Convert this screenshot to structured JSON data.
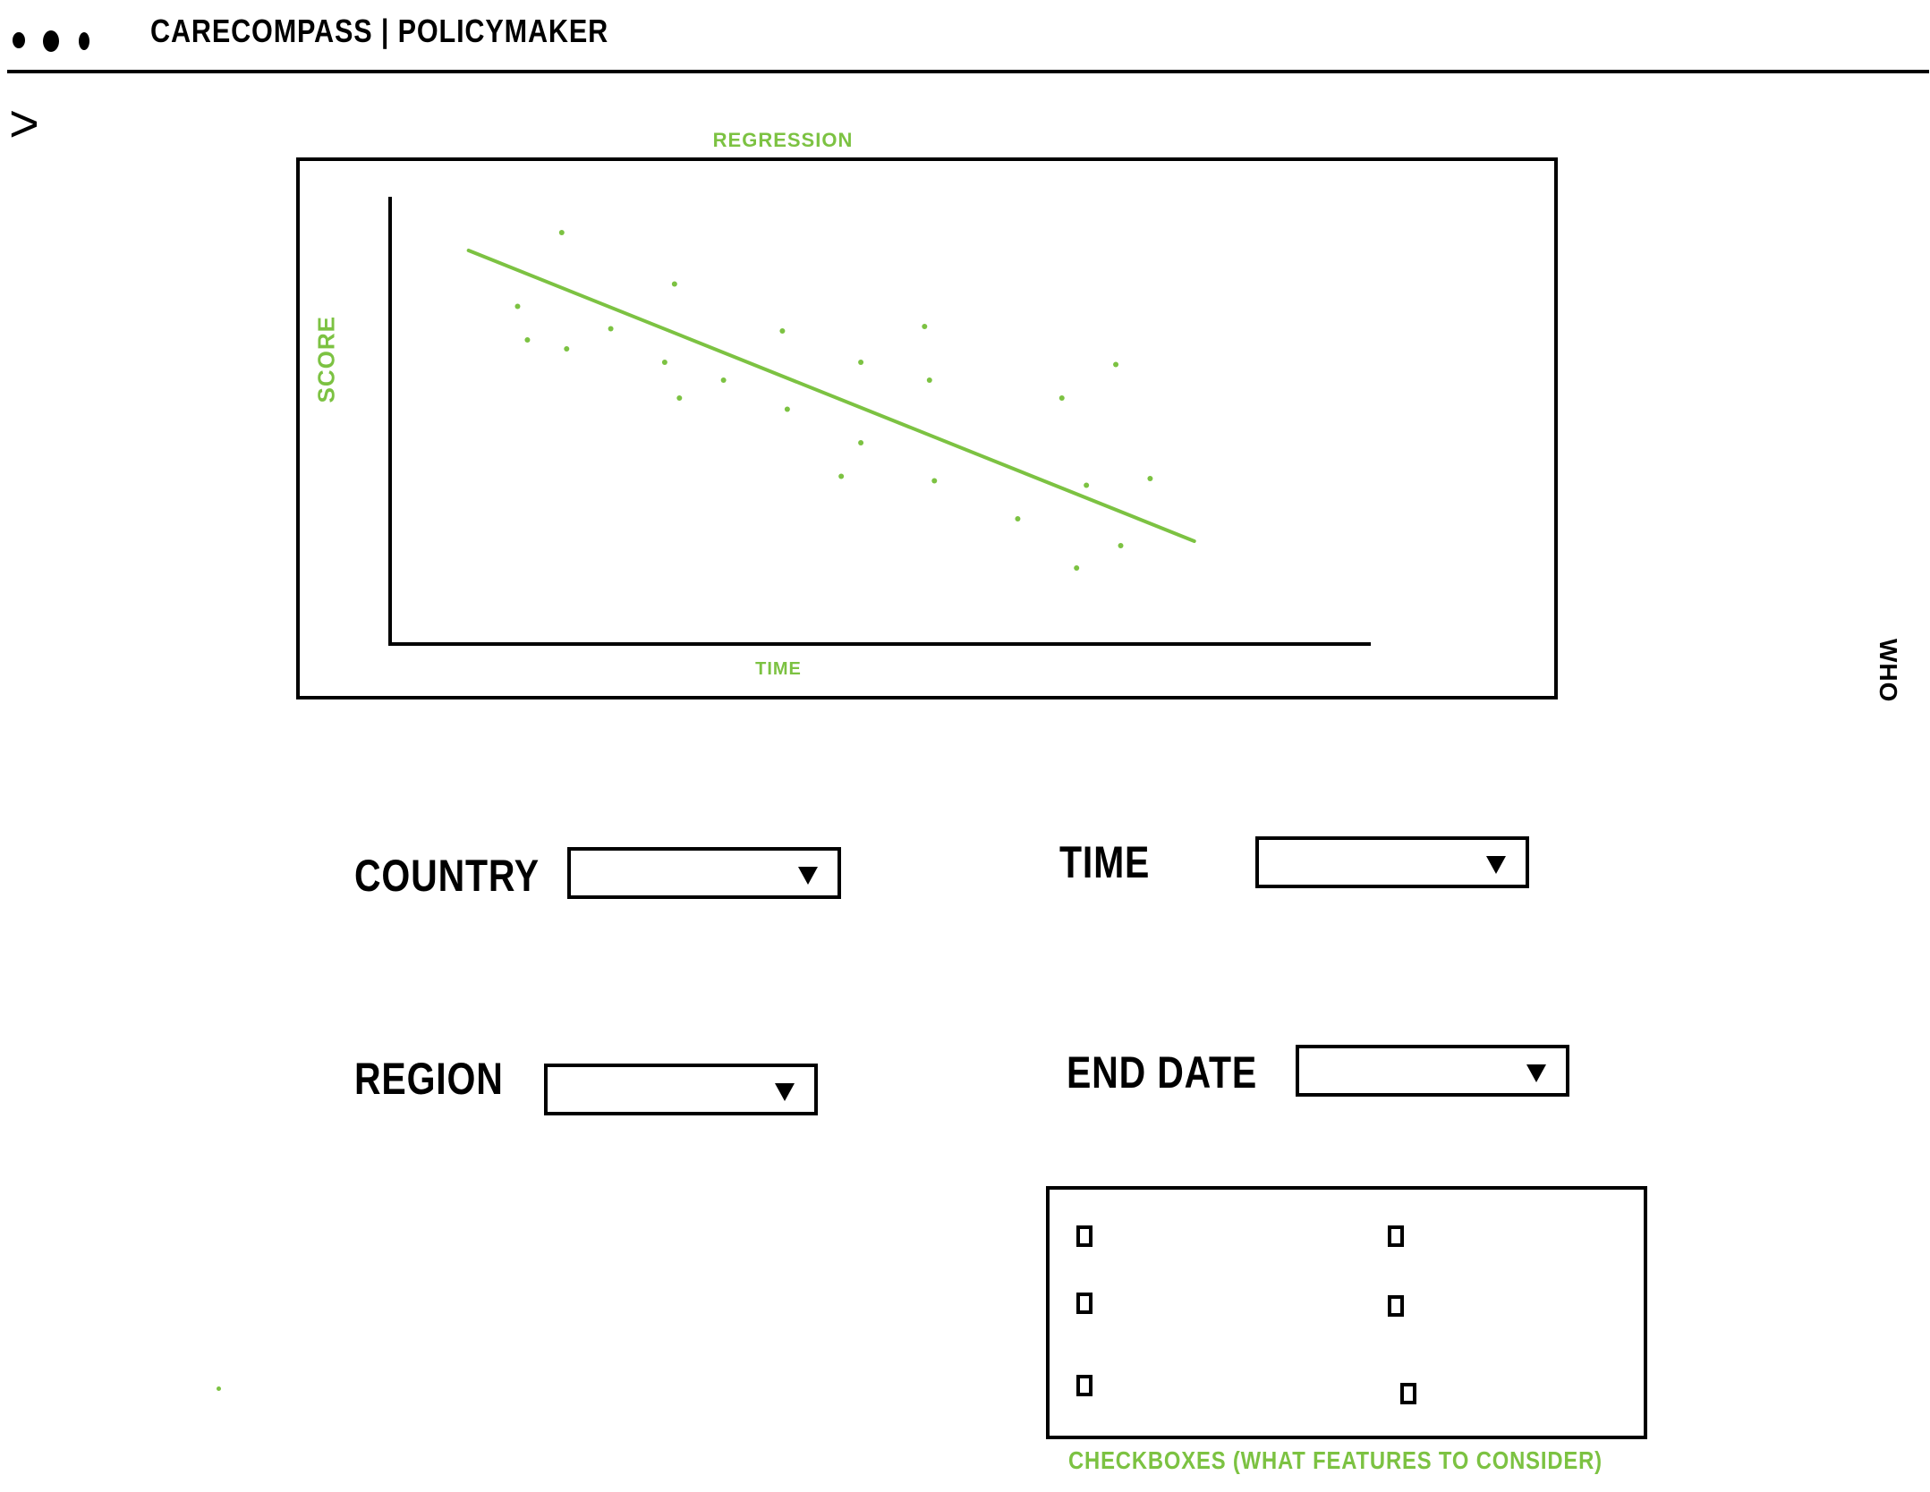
{
  "header": {
    "title": "CARECOMPASS | POLICYMAKER",
    "window_dots": [
      "dot",
      "dot",
      "dot"
    ],
    "toggle_glyph": ">"
  },
  "chart_data": {
    "type": "scatter",
    "title": "REGRESSION",
    "xlabel": "TIME",
    "ylabel": "SCORE",
    "x_range": [
      0,
      100
    ],
    "y_range": [
      0,
      100
    ],
    "points": [
      {
        "x": 17.5,
        "y": 92.0
      },
      {
        "x": 13.0,
        "y": 75.5
      },
      {
        "x": 14.0,
        "y": 68.0
      },
      {
        "x": 18.0,
        "y": 66.0
      },
      {
        "x": 22.5,
        "y": 70.5
      },
      {
        "x": 29.0,
        "y": 80.5
      },
      {
        "x": 28.0,
        "y": 63.0
      },
      {
        "x": 29.5,
        "y": 55.0
      },
      {
        "x": 34.0,
        "y": 59.0
      },
      {
        "x": 40.0,
        "y": 70.0
      },
      {
        "x": 40.5,
        "y": 52.5
      },
      {
        "x": 48.0,
        "y": 63.0
      },
      {
        "x": 48.0,
        "y": 45.0
      },
      {
        "x": 46.0,
        "y": 37.5
      },
      {
        "x": 54.5,
        "y": 71.0
      },
      {
        "x": 55.0,
        "y": 59.0
      },
      {
        "x": 55.5,
        "y": 36.5
      },
      {
        "x": 64.0,
        "y": 28.0
      },
      {
        "x": 68.5,
        "y": 55.0
      },
      {
        "x": 71.0,
        "y": 35.5
      },
      {
        "x": 74.0,
        "y": 62.5
      },
      {
        "x": 77.5,
        "y": 37.0
      },
      {
        "x": 74.5,
        "y": 22.0
      },
      {
        "x": 70.0,
        "y": 17.0
      }
    ],
    "regression_line": {
      "x": [
        8,
        82
      ],
      "y": [
        88,
        23
      ]
    },
    "grid": false,
    "color": "#7cc242"
  },
  "side_label": "WHO",
  "filters": {
    "country": {
      "label": "COUNTRY",
      "value": ""
    },
    "region": {
      "label": "REGION",
      "value": ""
    },
    "time": {
      "label": "TIME",
      "value": ""
    },
    "end_date": {
      "label": "END DATE",
      "value": ""
    }
  },
  "features": {
    "checkboxes": [
      {
        "checked": false
      },
      {
        "checked": false
      },
      {
        "checked": false
      },
      {
        "checked": false
      },
      {
        "checked": false
      },
      {
        "checked": false
      }
    ],
    "caption": "CHECKBOXES (WHAT FEATURES TO CONSIDER)"
  },
  "colors": {
    "ink": "#000000",
    "accent": "#7cc242",
    "background": "#ffffff"
  }
}
